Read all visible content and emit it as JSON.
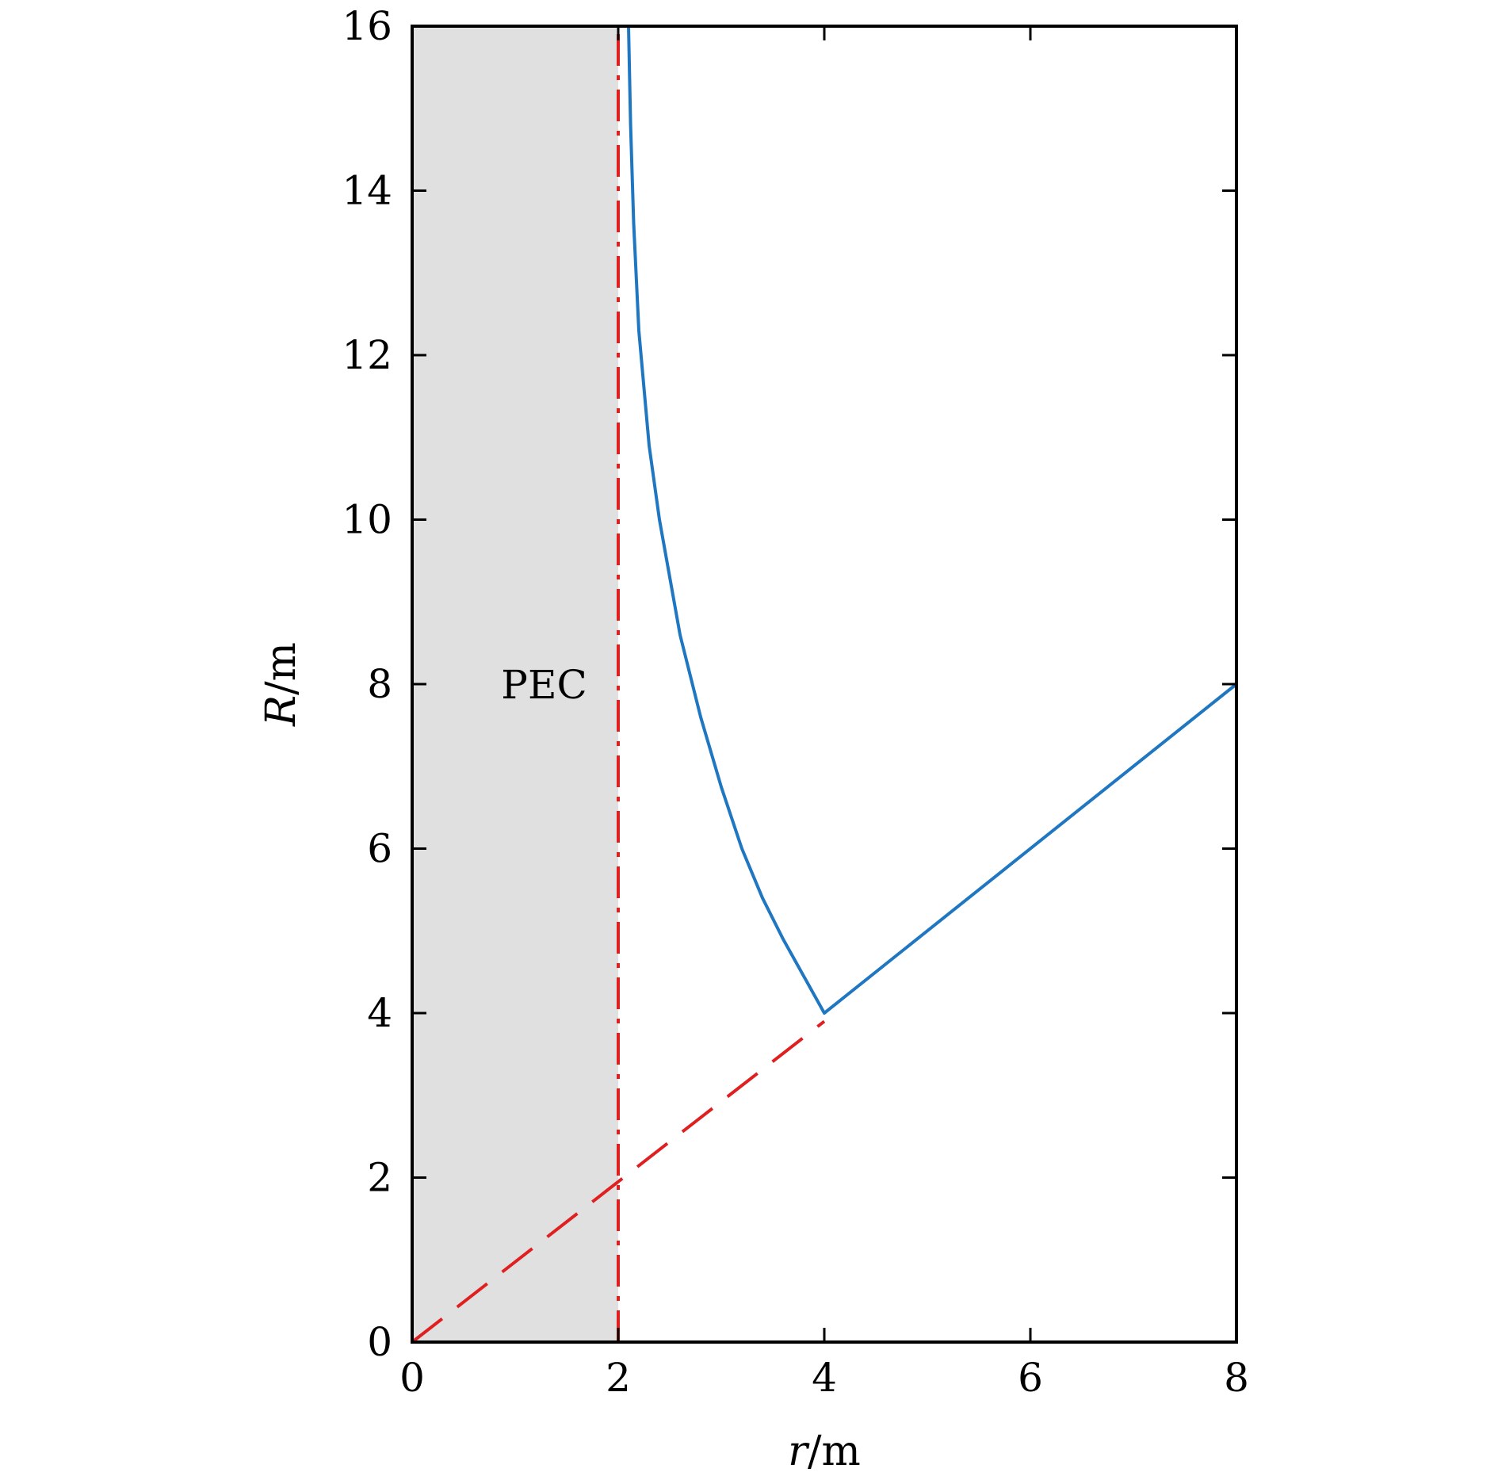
{
  "chart_data": {
    "type": "line",
    "title": "",
    "xlabel": {
      "var": "r",
      "unit": "/m"
    },
    "ylabel": {
      "var": "R",
      "unit": "/m"
    },
    "xlim": [
      0,
      8
    ],
    "ylim": [
      0,
      16
    ],
    "xticks": [
      0,
      2,
      4,
      6,
      8
    ],
    "yticks": [
      0,
      2,
      4,
      6,
      8,
      10,
      12,
      14,
      16
    ],
    "grid": false,
    "legend": "none",
    "shaded_region": {
      "x": [
        0,
        2
      ],
      "label": "PEC",
      "label_anchor": [
        1.05,
        8.0
      ],
      "color": "#e0e0e0"
    },
    "series": [
      {
        "style": "solid",
        "color": "#1f77c2",
        "points": [
          [
            2.1,
            16.0
          ],
          [
            2.12,
            14.8
          ],
          [
            2.15,
            13.6
          ],
          [
            2.2,
            12.3
          ],
          [
            2.3,
            10.9
          ],
          [
            2.4,
            10.0
          ],
          [
            2.5,
            9.3
          ],
          [
            2.6,
            8.6
          ],
          [
            2.8,
            7.6
          ],
          [
            3.0,
            6.75
          ],
          [
            3.2,
            6.0
          ],
          [
            3.4,
            5.4
          ],
          [
            3.6,
            4.9
          ],
          [
            3.8,
            4.45
          ],
          [
            4.0,
            4.0
          ],
          [
            8.0,
            8.0
          ]
        ]
      },
      {
        "style": "dashed",
        "color": "#e02020",
        "points": [
          [
            0,
            0
          ],
          [
            4,
            3.9
          ]
        ]
      },
      {
        "style": "dashdot",
        "color": "#e02020",
        "points": [
          [
            2,
            0
          ],
          [
            2,
            16
          ]
        ]
      }
    ]
  }
}
